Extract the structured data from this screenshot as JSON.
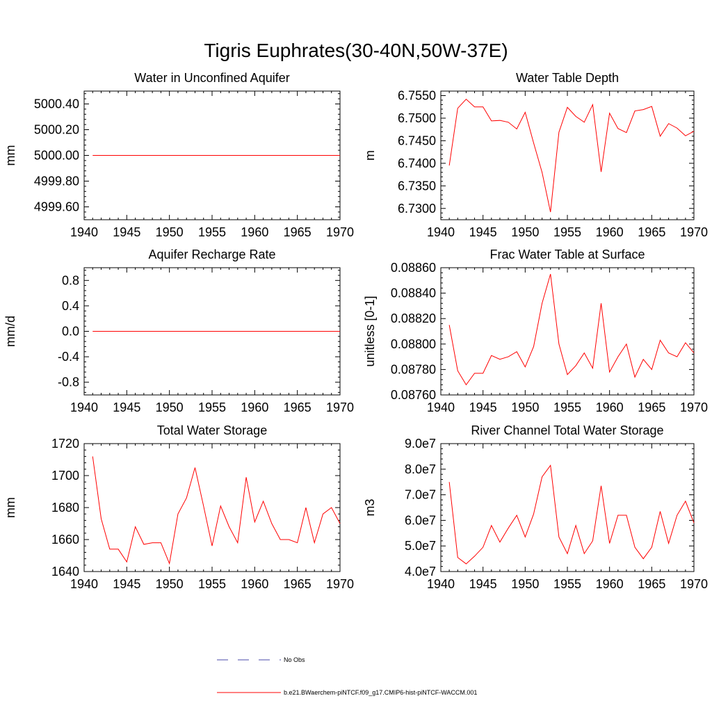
{
  "title": "Tigris Euphrates(30-40N,50W-37E)",
  "legend": {
    "obs_label": "No Obs",
    "obs_color": "#4a4aaa",
    "model_label": "b.e21.BWaerchem-piNTCF.f09_g17.CMIP6-hist-piNTCF-WACCM.001",
    "model_color": "#ff0000"
  },
  "chart_data": [
    {
      "type": "line",
      "title": "Water in Unconfined Aquifer",
      "ylabel": "mm",
      "xlim": [
        1940,
        1970
      ],
      "ylim": [
        4999.5,
        5000.5
      ],
      "xticks": [
        1940,
        1945,
        1950,
        1955,
        1960,
        1965,
        1970
      ],
      "yticks": [
        4999.6,
        4999.8,
        5000.0,
        5000.2,
        5000.4
      ],
      "ytick_labels": [
        "4999.60",
        "4999.80",
        "5000.00",
        "5000.20",
        "5000.40"
      ],
      "x": [
        1941,
        1942,
        1943,
        1944,
        1945,
        1946,
        1947,
        1948,
        1949,
        1950,
        1951,
        1952,
        1953,
        1954,
        1955,
        1956,
        1957,
        1958,
        1959,
        1960,
        1961,
        1962,
        1963,
        1964,
        1965,
        1966,
        1967,
        1968,
        1969,
        1970
      ],
      "values": [
        5000,
        5000,
        5000,
        5000,
        5000,
        5000,
        5000,
        5000,
        5000,
        5000,
        5000,
        5000,
        5000,
        5000,
        5000,
        5000,
        5000,
        5000,
        5000,
        5000,
        5000,
        5000,
        5000,
        5000,
        5000,
        5000,
        5000,
        5000,
        5000,
        5000
      ]
    },
    {
      "type": "line",
      "title": "Water Table Depth",
      "ylabel": "m",
      "xlim": [
        1940,
        1970
      ],
      "ylim": [
        6.7275,
        6.756
      ],
      "xticks": [
        1940,
        1945,
        1950,
        1955,
        1960,
        1965,
        1970
      ],
      "yticks": [
        6.73,
        6.735,
        6.74,
        6.745,
        6.75,
        6.755
      ],
      "ytick_labels": [
        "6.7300",
        "6.7350",
        "6.7400",
        "6.7450",
        "6.7500",
        "6.7550"
      ],
      "x": [
        1941,
        1942,
        1943,
        1944,
        1945,
        1946,
        1947,
        1948,
        1949,
        1950,
        1951,
        1952,
        1953,
        1954,
        1955,
        1956,
        1957,
        1958,
        1959,
        1960,
        1961,
        1962,
        1963,
        1964,
        1965,
        1966,
        1967,
        1968,
        1969,
        1970
      ],
      "values": [
        6.7395,
        6.7522,
        6.7542,
        6.7525,
        6.7525,
        6.7494,
        6.7495,
        6.7491,
        6.7476,
        6.7513,
        6.7445,
        6.738,
        6.7292,
        6.7469,
        6.7524,
        6.7504,
        6.7491,
        6.753,
        6.7381,
        6.7511,
        6.7477,
        6.7468,
        6.7516,
        6.7519,
        6.7526,
        6.746,
        6.7488,
        6.7478,
        6.7461,
        6.7471
      ]
    },
    {
      "type": "line",
      "title": "Aquifer Recharge Rate",
      "ylabel": "mm/d",
      "xlim": [
        1940,
        1970
      ],
      "ylim": [
        -1.0,
        1.0
      ],
      "xticks": [
        1940,
        1945,
        1950,
        1955,
        1960,
        1965,
        1970
      ],
      "yticks": [
        -0.8,
        -0.4,
        0.0,
        0.4,
        0.8
      ],
      "ytick_labels": [
        "-0.8",
        "-0.4",
        "0.0",
        "0.4",
        "0.8"
      ],
      "x": [
        1941,
        1942,
        1943,
        1944,
        1945,
        1946,
        1947,
        1948,
        1949,
        1950,
        1951,
        1952,
        1953,
        1954,
        1955,
        1956,
        1957,
        1958,
        1959,
        1960,
        1961,
        1962,
        1963,
        1964,
        1965,
        1966,
        1967,
        1968,
        1969,
        1970
      ],
      "values": [
        0,
        0,
        0,
        0,
        0,
        0,
        0,
        0,
        0,
        0,
        0,
        0,
        0,
        0,
        0,
        0,
        0,
        0,
        0,
        0,
        0,
        0,
        0,
        0,
        0,
        0,
        0,
        0,
        0,
        0
      ]
    },
    {
      "type": "line",
      "title": "Frac Water Table at Surface",
      "ylabel": "unitless [0-1]",
      "xlim": [
        1940,
        1970
      ],
      "ylim": [
        0.0876,
        0.0886
      ],
      "xticks": [
        1940,
        1945,
        1950,
        1955,
        1960,
        1965,
        1970
      ],
      "yticks": [
        0.0876,
        0.0878,
        0.088,
        0.0882,
        0.0884,
        0.0886
      ],
      "ytick_labels": [
        "0.08760",
        "0.08780",
        "0.08800",
        "0.08820",
        "0.08840",
        "0.08860"
      ],
      "x": [
        1941,
        1942,
        1943,
        1944,
        1945,
        1946,
        1947,
        1948,
        1949,
        1950,
        1951,
        1952,
        1953,
        1954,
        1955,
        1956,
        1957,
        1958,
        1959,
        1960,
        1961,
        1962,
        1963,
        1964,
        1965,
        1966,
        1967,
        1968,
        1969,
        1970
      ],
      "values": [
        0.08815,
        0.08779,
        0.08768,
        0.08777,
        0.08777,
        0.08791,
        0.08788,
        0.0879,
        0.08794,
        0.08782,
        0.08798,
        0.08832,
        0.08855,
        0.088,
        0.08776,
        0.08783,
        0.08793,
        0.08781,
        0.08832,
        0.08778,
        0.0879,
        0.088,
        0.08774,
        0.08788,
        0.0878,
        0.08803,
        0.08793,
        0.0879,
        0.08801,
        0.08793
      ]
    },
    {
      "type": "line",
      "title": "Total Water Storage",
      "ylabel": "mm",
      "xlim": [
        1940,
        1970
      ],
      "ylim": [
        1640,
        1720
      ],
      "xticks": [
        1940,
        1945,
        1950,
        1955,
        1960,
        1965,
        1970
      ],
      "yticks": [
        1640,
        1660,
        1680,
        1700,
        1720
      ],
      "ytick_labels": [
        "1640",
        "1660",
        "1680",
        "1700",
        "1720"
      ],
      "x": [
        1941,
        1942,
        1943,
        1944,
        1945,
        1946,
        1947,
        1948,
        1949,
        1950,
        1951,
        1952,
        1953,
        1954,
        1955,
        1956,
        1957,
        1958,
        1959,
        1960,
        1961,
        1962,
        1963,
        1964,
        1965,
        1966,
        1967,
        1968,
        1969,
        1970
      ],
      "values": [
        1712,
        1673,
        1654,
        1654,
        1646,
        1668,
        1657,
        1658,
        1658,
        1645,
        1676,
        1686,
        1705,
        1681,
        1656,
        1681,
        1668,
        1658,
        1699,
        1671,
        1684,
        1670,
        1660,
        1660,
        1658,
        1680,
        1658,
        1676,
        1680,
        1670
      ]
    },
    {
      "type": "line",
      "title": "River Channel Total Water Storage",
      "ylabel": "m3",
      "xlim": [
        1940,
        1970
      ],
      "ylim": [
        40000000,
        90000000
      ],
      "xticks": [
        1940,
        1945,
        1950,
        1955,
        1960,
        1965,
        1970
      ],
      "yticks": [
        40000000,
        50000000,
        60000000,
        70000000,
        80000000,
        90000000
      ],
      "ytick_labels": [
        "4.0e7",
        "5.0e7",
        "6.0e7",
        "7.0e7",
        "8.0e7",
        "9.0e7"
      ],
      "x": [
        1941,
        1942,
        1943,
        1944,
        1945,
        1946,
        1947,
        1948,
        1949,
        1950,
        1951,
        1952,
        1953,
        1954,
        1955,
        1956,
        1957,
        1958,
        1959,
        1960,
        1961,
        1962,
        1963,
        1964,
        1965,
        1966,
        1967,
        1968,
        1969,
        1970
      ],
      "values": [
        75000000,
        45500000,
        43000000,
        46000000,
        49500000,
        58000000,
        51500000,
        57000000,
        62000000,
        53500000,
        62500000,
        77000000,
        81500000,
        53500000,
        47000000,
        58000000,
        47000000,
        52000000,
        73500000,
        51000000,
        62000000,
        62000000,
        49500000,
        45000000,
        49500000,
        63500000,
        51000000,
        62000000,
        67500000,
        59000000
      ]
    }
  ]
}
